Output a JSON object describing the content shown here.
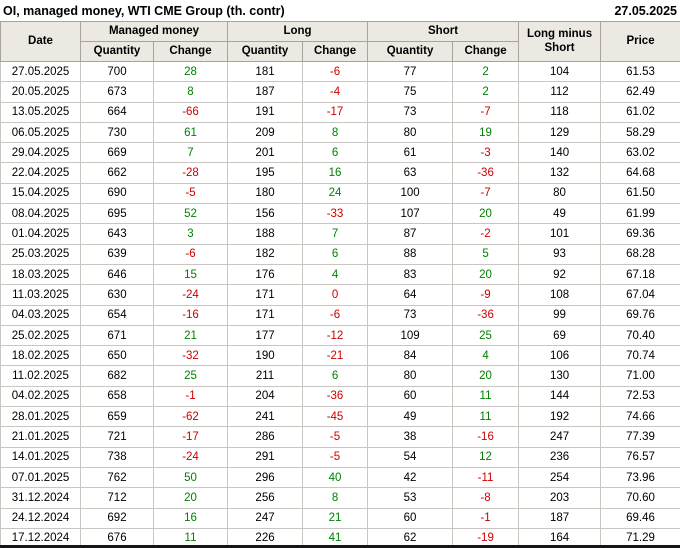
{
  "title": "OI, managed money, WTI CME Group (th. contr)",
  "report_date": "27.05.2025",
  "colors": {
    "positive_change": "#008000",
    "negative_change": "#cc0000",
    "header_background": "#ece9e3"
  },
  "table": {
    "header": {
      "date": "Date",
      "managed_money": "Managed money",
      "long": "Long",
      "short": "Short",
      "long_minus_short": "Long minus Short",
      "price": "Price",
      "quantity": "Quantity",
      "change": "Change"
    },
    "rows": [
      [
        "27.05.2025",
        "700",
        "28",
        "181",
        "-6",
        "77",
        "2",
        "104",
        "61.53"
      ],
      [
        "20.05.2025",
        "673",
        "8",
        "187",
        "-4",
        "75",
        "2",
        "112",
        "62.49"
      ],
      [
        "13.05.2025",
        "664",
        "-66",
        "191",
        "-17",
        "73",
        "-7",
        "118",
        "61.02"
      ],
      [
        "06.05.2025",
        "730",
        "61",
        "209",
        "8",
        "80",
        "19",
        "129",
        "58.29"
      ],
      [
        "29.04.2025",
        "669",
        "7",
        "201",
        "6",
        "61",
        "-3",
        "140",
        "63.02"
      ],
      [
        "22.04.2025",
        "662",
        "-28",
        "195",
        "16",
        "63",
        "-36",
        "132",
        "64.68"
      ],
      [
        "15.04.2025",
        "690",
        "-5",
        "180",
        "24",
        "100",
        "-7",
        "80",
        "61.50"
      ],
      [
        "08.04.2025",
        "695",
        "52",
        "156",
        "-33",
        "107",
        "20",
        "49",
        "61.99"
      ],
      [
        "01.04.2025",
        "643",
        "3",
        "188",
        "7",
        "87",
        "-2",
        "101",
        "69.36"
      ],
      [
        "25.03.2025",
        "639",
        "-6",
        "182",
        "6",
        "88",
        "5",
        "93",
        "68.28"
      ],
      [
        "18.03.2025",
        "646",
        "15",
        "176",
        "4",
        "83",
        "20",
        "92",
        "67.18"
      ],
      [
        "11.03.2025",
        "630",
        "-24",
        "171",
        "0",
        "64",
        "-9",
        "108",
        "67.04"
      ],
      [
        "04.03.2025",
        "654",
        "-16",
        "171",
        "-6",
        "73",
        "-36",
        "99",
        "69.76"
      ],
      [
        "25.02.2025",
        "671",
        "21",
        "177",
        "-12",
        "109",
        "25",
        "69",
        "70.40"
      ],
      [
        "18.02.2025",
        "650",
        "-32",
        "190",
        "-21",
        "84",
        "4",
        "106",
        "70.74"
      ],
      [
        "11.02.2025",
        "682",
        "25",
        "211",
        "6",
        "80",
        "20",
        "130",
        "71.00"
      ],
      [
        "04.02.2025",
        "658",
        "-1",
        "204",
        "-36",
        "60",
        "11",
        "144",
        "72.53"
      ],
      [
        "28.01.2025",
        "659",
        "-62",
        "241",
        "-45",
        "49",
        "11",
        "192",
        "74.66"
      ],
      [
        "21.01.2025",
        "721",
        "-17",
        "286",
        "-5",
        "38",
        "-16",
        "247",
        "77.39"
      ],
      [
        "14.01.2025",
        "738",
        "-24",
        "291",
        "-5",
        "54",
        "12",
        "236",
        "76.57"
      ],
      [
        "07.01.2025",
        "762",
        "50",
        "296",
        "40",
        "42",
        "-11",
        "254",
        "73.96"
      ],
      [
        "31.12.2024",
        "712",
        "20",
        "256",
        "8",
        "53",
        "-8",
        "203",
        "70.60"
      ],
      [
        "24.12.2024",
        "692",
        "16",
        "247",
        "21",
        "60",
        "-1",
        "187",
        "69.46"
      ],
      [
        "17.12.2024",
        "676",
        "11",
        "226",
        "41",
        "62",
        "-19",
        "164",
        "71.29"
      ]
    ]
  }
}
